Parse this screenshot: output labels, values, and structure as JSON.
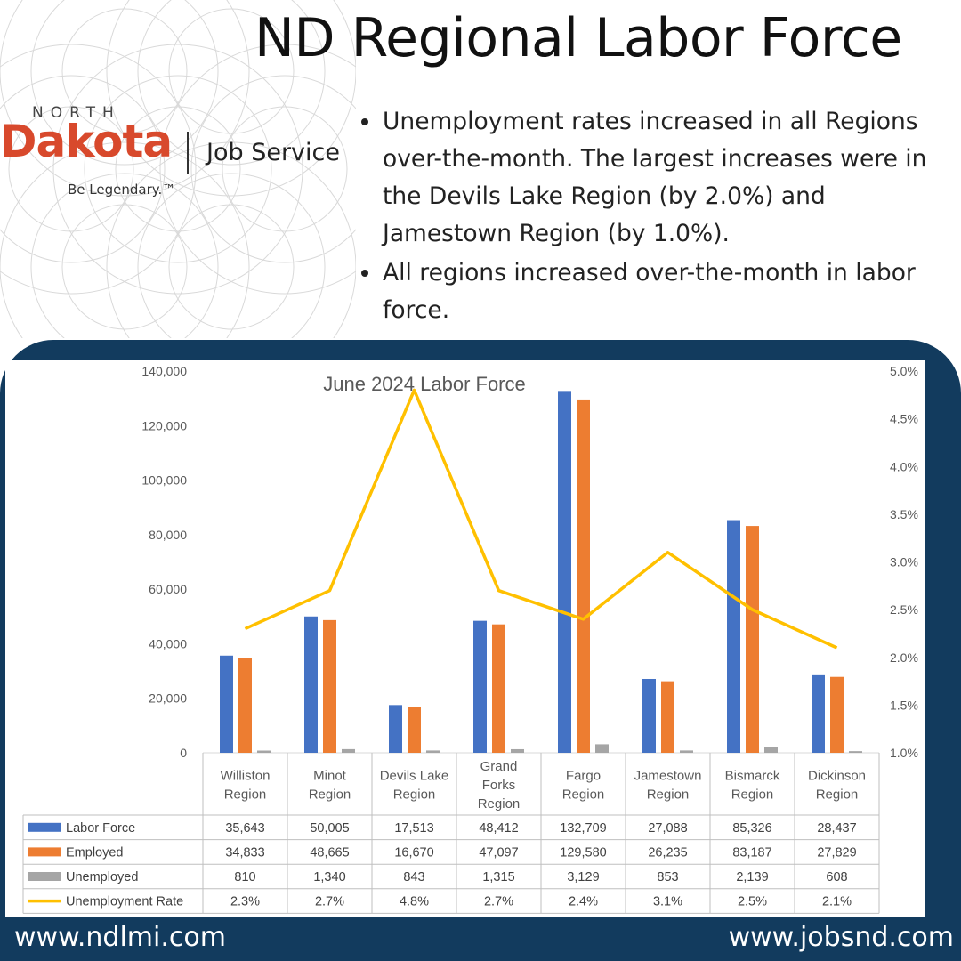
{
  "title": "ND Regional Labor Force",
  "logo": {
    "north": "NORTH",
    "dakota": "Dakota",
    "service": "Job Service",
    "tagline": "Be Legendary.™"
  },
  "bullets": [
    "Unemployment rates increased in all Regions over-the-month. The largest increases were in the Devils Lake Region (by 2.0%) and Jamestown Region (by 1.0%).",
    "All regions increased over-the-month in labor force."
  ],
  "footer": {
    "left": "www.ndlmi.com",
    "right": "www.jobsnd.com"
  },
  "colors": {
    "frame": "#123b5e",
    "labor_force": "#4472c4",
    "employed": "#ed7d31",
    "unemployed": "#a5a5a5",
    "rate": "#ffc000",
    "brand_red": "#d8492c"
  },
  "chart_data": {
    "type": "bar",
    "title": "June 2024 Labor Force",
    "categories": [
      [
        "Williston",
        "Region"
      ],
      [
        "Minot",
        "Region"
      ],
      [
        "Devils Lake",
        "Region"
      ],
      [
        "Grand",
        "Forks",
        "Region"
      ],
      [
        "Fargo",
        "Region"
      ],
      [
        "Jamestown",
        "Region"
      ],
      [
        "Bismarck",
        "Region"
      ],
      [
        "Dickinson",
        "Region"
      ]
    ],
    "series": [
      {
        "name": "Labor Force",
        "type": "bar",
        "axis": "left",
        "color": "#4472c4",
        "values": [
          35643,
          50005,
          17513,
          48412,
          132709,
          27088,
          85326,
          28437
        ],
        "labels": [
          "35,643",
          "50,005",
          "17,513",
          "48,412",
          "132,709",
          "27,088",
          "85,326",
          "28,437"
        ]
      },
      {
        "name": "Employed",
        "type": "bar",
        "axis": "left",
        "color": "#ed7d31",
        "values": [
          34833,
          48665,
          16670,
          47097,
          129580,
          26235,
          83187,
          27829
        ],
        "labels": [
          "34,833",
          "48,665",
          "16,670",
          "47,097",
          "129,580",
          "26,235",
          "83,187",
          "27,829"
        ]
      },
      {
        "name": "Unemployed",
        "type": "bar",
        "axis": "left",
        "color": "#a5a5a5",
        "values": [
          810,
          1340,
          843,
          1315,
          3129,
          853,
          2139,
          608
        ],
        "labels": [
          "810",
          "1,340",
          "843",
          "1,315",
          "3,129",
          "853",
          "2,139",
          "608"
        ]
      },
      {
        "name": "Unemployment Rate",
        "type": "line",
        "axis": "right",
        "color": "#ffc000",
        "values": [
          2.3,
          2.7,
          4.8,
          2.7,
          2.4,
          3.1,
          2.5,
          2.1
        ],
        "labels": [
          "2.3%",
          "2.7%",
          "4.8%",
          "2.7%",
          "2.4%",
          "3.1%",
          "2.5%",
          "2.1%"
        ]
      }
    ],
    "y_left": {
      "range": [
        0,
        140000
      ],
      "ticks": [
        "0",
        "20,000",
        "40,000",
        "60,000",
        "80,000",
        "100,000",
        "120,000",
        "140,000"
      ]
    },
    "y_right": {
      "range": [
        1.0,
        5.0
      ],
      "ticks": [
        "1.0%",
        "1.5%",
        "2.0%",
        "2.5%",
        "3.0%",
        "3.5%",
        "4.0%",
        "4.5%",
        "5.0%"
      ]
    },
    "grid": false,
    "legend": "data-table"
  }
}
